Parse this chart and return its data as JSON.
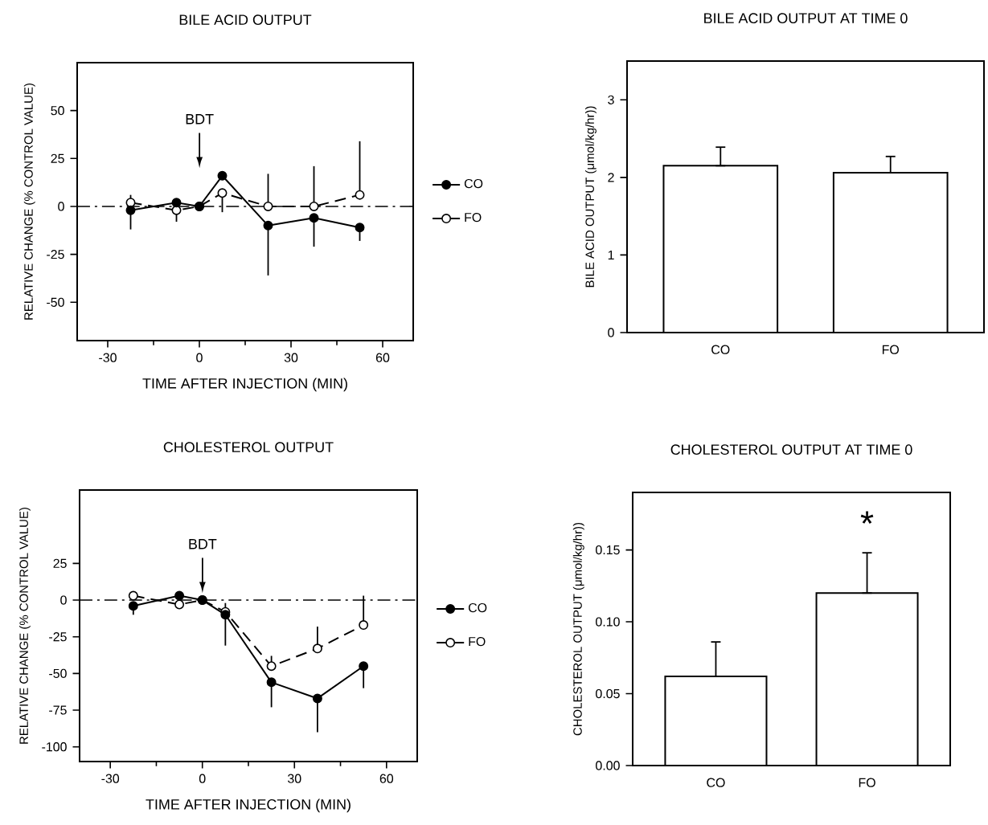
{
  "chart_data": [
    {
      "type": "line",
      "title": "BILE ACID OUTPUT",
      "xlabel": "TIME AFTER INJECTION (MIN)",
      "ylabel": "RELATIVE CHANGE (% CONTROL VALUE)",
      "x": [
        -22.5,
        -7.5,
        0,
        7.5,
        22.5,
        37.5,
        52.5
      ],
      "xlim": [
        -40,
        70
      ],
      "xticks": [
        -30,
        0,
        30,
        60
      ],
      "ylim": [
        -70,
        75
      ],
      "yticks": [
        -50,
        -25,
        0,
        25,
        50
      ],
      "marker": "circle",
      "legend": "right",
      "ref_lines": [
        {
          "axis": "y",
          "value": 0,
          "line_style": "dashdot"
        }
      ],
      "annotations": [
        "BDT"
      ],
      "series": [
        {
          "name": "CO",
          "color": "#000000",
          "line_style": "solid",
          "values": [
            -2,
            2,
            0,
            16,
            -10,
            -6,
            -11
          ],
          "errors": [
            [
              -12,
              -2
            ],
            null,
            null,
            null,
            [
              -36,
              -10
            ],
            [
              -21,
              -6
            ],
            [
              -18,
              -11
            ]
          ]
        },
        {
          "name": "FO",
          "color": "#000000",
          "line_style": "dashed",
          "values": [
            2,
            -2,
            0,
            7,
            0,
            0,
            6
          ],
          "errors": [
            [
              2,
              6
            ],
            [
              -8,
              -2
            ],
            null,
            [
              -3,
              7
            ],
            [
              0,
              17
            ],
            [
              0,
              21
            ],
            [
              6,
              34
            ]
          ]
        }
      ]
    },
    {
      "type": "bar",
      "title": "BILE ACID OUTPUT AT TIME 0",
      "ylabel": "BILE ACID OUTPUT (μmol/kg/hr))",
      "categories": [
        "CO",
        "FO"
      ],
      "values": [
        2.15,
        2.06
      ],
      "errors": [
        [
          2.15,
          2.39
        ],
        [
          2.06,
          2.27
        ]
      ],
      "color": "#ffffff",
      "ylim": [
        0,
        3.5
      ],
      "yticks": [
        0,
        1,
        2,
        3
      ]
    },
    {
      "type": "line",
      "title": "CHOLESTEROL OUTPUT",
      "xlabel": "TIME AFTER INJECTION (MIN)",
      "ylabel": "RELATIVE CHANGE (% CONTROL VALUE)",
      "x": [
        -22.5,
        -7.5,
        0,
        7.5,
        22.5,
        37.5,
        52.5
      ],
      "xlim": [
        -40,
        70
      ],
      "xticks": [
        -30,
        0,
        30,
        60
      ],
      "ylim": [
        -110,
        75
      ],
      "yticks": [
        -100,
        -75,
        -50,
        -25,
        0,
        25
      ],
      "marker": "circle",
      "legend": "right",
      "ref_lines": [
        {
          "axis": "y",
          "value": 0,
          "line_style": "dashdot"
        }
      ],
      "annotations": [
        "BDT"
      ],
      "series": [
        {
          "name": "CO",
          "color": "#000000",
          "line_style": "solid",
          "values": [
            -4,
            3,
            0,
            -10,
            -56,
            -67,
            -45
          ],
          "errors": [
            [
              -10,
              -4
            ],
            null,
            null,
            [
              -31,
              -10
            ],
            [
              -73,
              -56
            ],
            [
              -90,
              -67
            ],
            [
              -60,
              -45
            ]
          ]
        },
        {
          "name": "FO",
          "color": "#000000",
          "line_style": "dashed",
          "values": [
            3,
            -3,
            0,
            -8,
            -45,
            -33,
            -17
          ],
          "errors": [
            null,
            null,
            null,
            [
              -8,
              -2
            ],
            [
              -45,
              -38
            ],
            [
              -33,
              -18
            ],
            [
              -17,
              3
            ]
          ]
        }
      ]
    },
    {
      "type": "bar",
      "title": "CHOLESTEROL OUTPUT AT TIME 0",
      "ylabel": "CHOLESTEROL OUTPUT (μmol/kg/hr))",
      "categories": [
        "CO",
        "FO"
      ],
      "values": [
        0.062,
        0.12
      ],
      "errors": [
        [
          0.062,
          0.086
        ],
        [
          0.12,
          0.148
        ]
      ],
      "color": "#ffffff",
      "ylim": [
        0,
        0.19
      ],
      "yticks": [
        {
          "value": 0,
          "label": "0.00"
        },
        {
          "value": 0.05,
          "label": "0.05"
        },
        {
          "value": 0.1,
          "label": "0.10"
        },
        {
          "value": 0.15,
          "label": "0.15"
        }
      ],
      "annotations": [
        "*"
      ]
    }
  ]
}
